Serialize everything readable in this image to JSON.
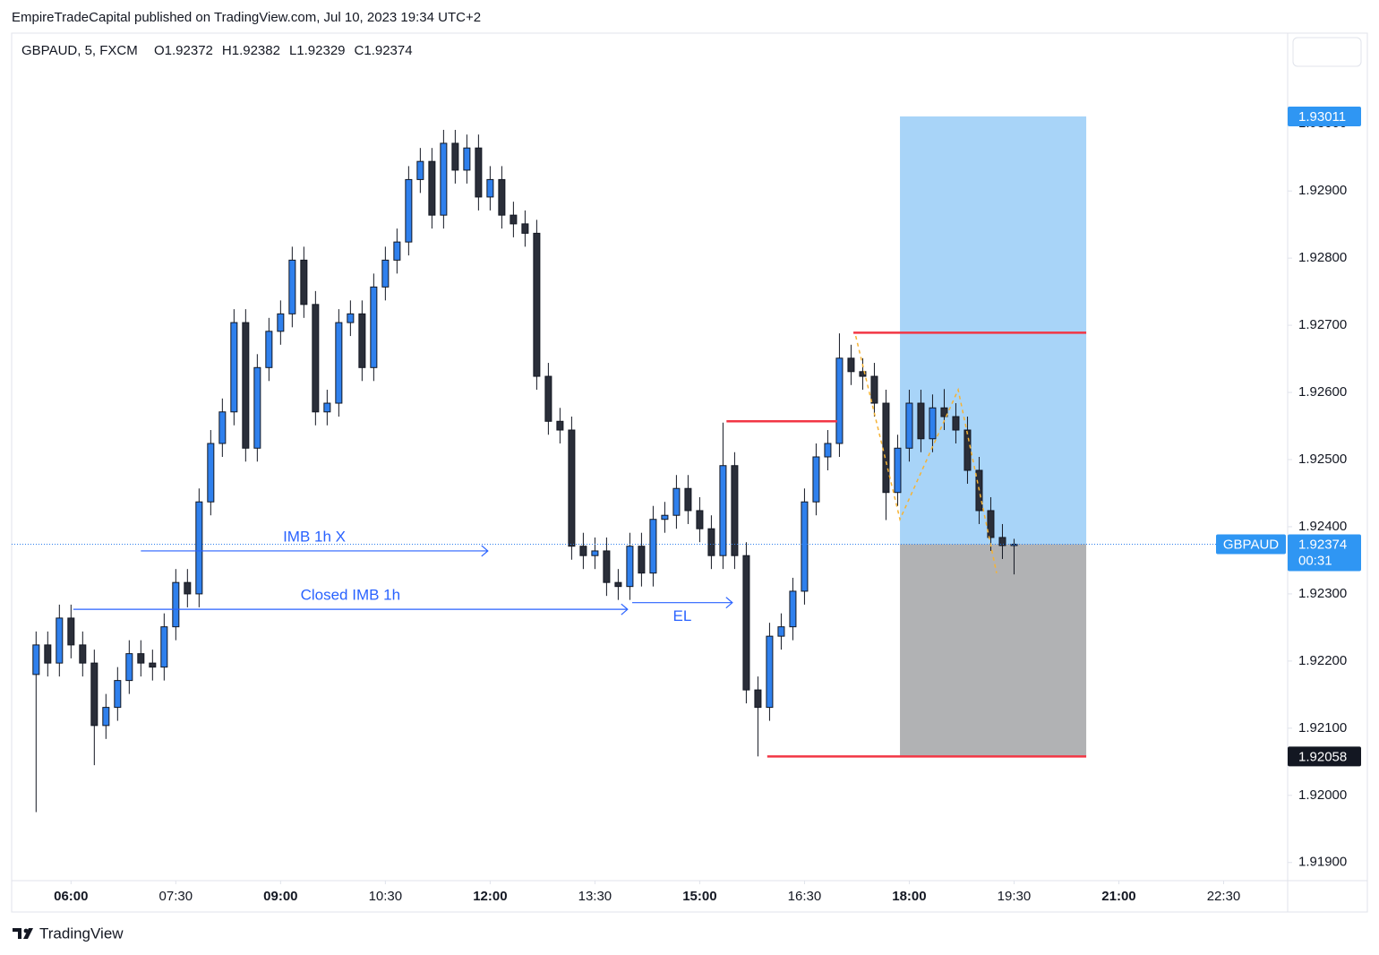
{
  "header": {
    "published": "EmpireTradeCapital published on TradingView.com, Jul 10, 2023 19:34 UTC+2",
    "brand": "TradingView"
  },
  "chart_data": {
    "type": "candlestick",
    "symbol": "GBPAUD, 5, FXCM",
    "ohlc_legend": [
      "O1.92372",
      "H1.92382",
      "L1.92329",
      "C1.92374"
    ],
    "up_color": "#2f80ed",
    "down_color": "#2a2e39",
    "x": [
      "05:30",
      "05:40",
      "05:50",
      "06:00",
      "06:10",
      "06:20",
      "06:30",
      "06:40",
      "06:50",
      "07:00",
      "07:10",
      "07:20",
      "07:30",
      "07:40",
      "07:50",
      "08:00",
      "08:10",
      "08:20",
      "08:30",
      "08:40",
      "08:50",
      "09:00",
      "09:10",
      "09:20",
      "09:30",
      "09:40",
      "09:50",
      "10:00",
      "10:10",
      "10:20",
      "10:30",
      "10:40",
      "10:50",
      "11:00",
      "11:10",
      "11:20",
      "11:30",
      "11:40",
      "11:50",
      "12:00",
      "12:10",
      "12:20",
      "12:30",
      "12:40",
      "12:50",
      "13:00",
      "13:10",
      "13:20",
      "13:30",
      "13:40",
      "13:50",
      "14:00",
      "14:10",
      "14:20",
      "14:30",
      "14:40",
      "14:50",
      "15:00",
      "15:10",
      "15:20",
      "15:30",
      "15:40",
      "15:50",
      "16:00",
      "16:10",
      "16:20",
      "16:30",
      "16:40",
      "16:50",
      "17:00",
      "17:10",
      "17:20",
      "17:30",
      "17:40",
      "17:50",
      "18:00",
      "18:10",
      "18:20",
      "18:30",
      "18:40",
      "18:50",
      "19:00",
      "19:10",
      "19:20",
      "19:30"
    ],
    "open": [
      1.9218,
      1.92224,
      1.92197,
      1.92264,
      1.92224,
      1.92197,
      1.92104,
      1.92131,
      1.92171,
      1.92211,
      1.92197,
      1.92191,
      1.92251,
      1.92317,
      1.923,
      1.92437,
      1.92524,
      1.92571,
      1.92704,
      1.92517,
      1.92637,
      1.92691,
      1.92717,
      1.92797,
      1.92731,
      1.92571,
      1.92584,
      1.92704,
      1.92717,
      1.92637,
      1.92757,
      1.92797,
      1.92824,
      1.92917,
      1.92944,
      1.92864,
      1.92971,
      1.92931,
      1.92964,
      1.92891,
      1.92917,
      1.92864,
      1.92851,
      1.92837,
      1.92624,
      1.92557,
      1.92544,
      1.92371,
      1.92357,
      1.92364,
      1.92317,
      1.92311,
      1.92371,
      1.92331,
      1.92411,
      1.92417,
      1.92457,
      1.92424,
      1.92397,
      1.92357,
      1.92491,
      1.92357,
      1.92157,
      1.92131,
      1.92237,
      1.92251,
      1.92304,
      1.92437,
      1.92504,
      1.92524,
      1.92651,
      1.92631,
      1.92624,
      1.92584,
      1.92451,
      1.92517,
      1.92584,
      1.92531,
      1.92577,
      1.92564,
      1.92544,
      1.92484,
      1.92424,
      1.92384,
      1.92372
    ],
    "high": [
      1.92244,
      1.92244,
      1.92284,
      1.92284,
      1.92244,
      1.92217,
      1.92151,
      1.92191,
      1.92231,
      1.92231,
      1.92217,
      1.92271,
      1.92337,
      1.92337,
      1.92457,
      1.92544,
      1.92591,
      1.92724,
      1.92724,
      1.92657,
      1.92711,
      1.92737,
      1.92817,
      1.92817,
      1.92751,
      1.92604,
      1.92724,
      1.92737,
      1.92737,
      1.92777,
      1.92817,
      1.92844,
      1.92937,
      1.92964,
      1.92964,
      1.92991,
      1.92991,
      1.92984,
      1.92984,
      1.92937,
      1.92937,
      1.92884,
      1.92871,
      1.92857,
      1.92644,
      1.92577,
      1.92564,
      1.92391,
      1.92384,
      1.92384,
      1.92337,
      1.92391,
      1.92391,
      1.92431,
      1.92437,
      1.92477,
      1.92477,
      1.92444,
      1.92417,
      1.92555,
      1.92511,
      1.92377,
      1.92177,
      1.92257,
      1.92271,
      1.92324,
      1.92457,
      1.92524,
      1.92544,
      1.92688,
      1.92671,
      1.92651,
      1.92644,
      1.92604,
      1.92537,
      1.92604,
      1.92604,
      1.92597,
      1.92605,
      1.92584,
      1.92564,
      1.92504,
      1.92444,
      1.92404,
      1.92382
    ],
    "low": [
      1.91975,
      1.92177,
      1.92177,
      1.92204,
      1.92177,
      1.92045,
      1.92084,
      1.92111,
      1.92151,
      1.92177,
      1.92171,
      1.92171,
      1.92231,
      1.9228,
      1.9228,
      1.92417,
      1.92504,
      1.92551,
      1.92497,
      1.92497,
      1.92617,
      1.92671,
      1.92697,
      1.92711,
      1.92551,
      1.92551,
      1.92564,
      1.92684,
      1.92617,
      1.92617,
      1.92737,
      1.92777,
      1.92804,
      1.92897,
      1.92844,
      1.92844,
      1.92911,
      1.92911,
      1.92871,
      1.92871,
      1.92844,
      1.92831,
      1.92817,
      1.92604,
      1.92537,
      1.92524,
      1.92351,
      1.92337,
      1.92337,
      1.92297,
      1.92291,
      1.92291,
      1.92311,
      1.92311,
      1.92391,
      1.92397,
      1.92404,
      1.92377,
      1.92337,
      1.92337,
      1.92337,
      1.92137,
      1.92058,
      1.92111,
      1.92217,
      1.92231,
      1.92284,
      1.92417,
      1.92484,
      1.92504,
      1.92611,
      1.92604,
      1.92564,
      1.9241,
      1.92431,
      1.92497,
      1.92511,
      1.92511,
      1.92544,
      1.92524,
      1.92464,
      1.92404,
      1.92364,
      1.92352,
      1.92329
    ],
    "close": [
      1.92224,
      1.92197,
      1.92264,
      1.92224,
      1.92197,
      1.92104,
      1.92131,
      1.92171,
      1.92211,
      1.92197,
      1.92191,
      1.92251,
      1.92317,
      1.923,
      1.92437,
      1.92524,
      1.92571,
      1.92704,
      1.92517,
      1.92637,
      1.92691,
      1.92717,
      1.92797,
      1.92731,
      1.92571,
      1.92584,
      1.92704,
      1.92717,
      1.92637,
      1.92757,
      1.92797,
      1.92824,
      1.92917,
      1.92944,
      1.92864,
      1.92971,
      1.92931,
      1.92964,
      1.92891,
      1.92917,
      1.92864,
      1.92851,
      1.92837,
      1.92624,
      1.92557,
      1.92544,
      1.92371,
      1.92357,
      1.92364,
      1.92317,
      1.92311,
      1.92371,
      1.92331,
      1.92411,
      1.92417,
      1.92457,
      1.92424,
      1.92397,
      1.92357,
      1.92491,
      1.92357,
      1.92157,
      1.92131,
      1.92237,
      1.92251,
      1.92304,
      1.92437,
      1.92504,
      1.92524,
      1.92651,
      1.92631,
      1.92624,
      1.92584,
      1.92451,
      1.92517,
      1.92584,
      1.92531,
      1.92577,
      1.92564,
      1.92544,
      1.92484,
      1.92424,
      1.92384,
      1.92372,
      1.92374
    ],
    "xlim": [
      "05:09",
      "23:25"
    ],
    "xticks": [
      "06:00",
      "07:30",
      "09:00",
      "10:30",
      "12:00",
      "13:30",
      "15:00",
      "16:30",
      "18:00",
      "19:30",
      "21:00",
      "22:30"
    ],
    "ylim": [
      1.91873,
      1.93135
    ],
    "yticks": [
      {
        "value": 1.919,
        "label": "1.91900"
      },
      {
        "value": 1.92,
        "label": "1.92000"
      },
      {
        "value": 1.921,
        "label": "1.92100"
      },
      {
        "value": 1.922,
        "label": "1.92200"
      },
      {
        "value": 1.923,
        "label": "1.92300"
      },
      {
        "value": 1.924,
        "label": "1.92400"
      },
      {
        "value": 1.925,
        "label": "1.92500"
      },
      {
        "value": 1.926,
        "label": "1.92600"
      },
      {
        "value": 1.927,
        "label": "1.92700"
      },
      {
        "value": 1.928,
        "label": "1.92800"
      },
      {
        "value": 1.929,
        "label": "1.92900"
      },
      {
        "value": 1.93,
        "label": "1.93000"
      }
    ],
    "position": {
      "target": 1.93011,
      "entry": 1.92374,
      "stop": 1.92058,
      "start": "17:52",
      "end": "20:32",
      "symbol": "GBPAUD",
      "countdown": "00:31"
    },
    "levels": [
      {
        "price": 1.92689,
        "start": "17:12",
        "end": "20:32"
      },
      {
        "price": 1.92557,
        "start": "15:23",
        "end": "16:58"
      },
      {
        "price": 1.92058,
        "start": "15:58",
        "end": "20:32"
      }
    ],
    "annotations": [
      {
        "text": "IMB 1h X",
        "price": 1.92364,
        "start": "07:00",
        "end": "11:58"
      },
      {
        "text": "Closed IMB 1h",
        "price": 1.92277,
        "start": "06:02",
        "end": "13:58"
      },
      {
        "text": "EL",
        "price": 1.92287,
        "start": "14:02",
        "end": "15:28"
      }
    ],
    "pattern": {
      "x": [
        "17:14",
        "17:52",
        "18:42",
        "19:15"
      ],
      "values": [
        1.92684,
        1.92411,
        1.92604,
        1.92331
      ]
    }
  }
}
